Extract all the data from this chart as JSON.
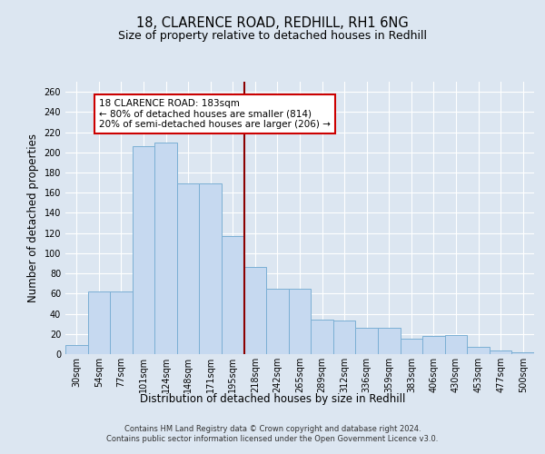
{
  "title": "18, CLARENCE ROAD, REDHILL, RH1 6NG",
  "subtitle": "Size of property relative to detached houses in Redhill",
  "xlabel": "Distribution of detached houses by size in Redhill",
  "ylabel": "Number of detached properties",
  "categories": [
    "30sqm",
    "54sqm",
    "77sqm",
    "101sqm",
    "124sqm",
    "148sqm",
    "171sqm",
    "195sqm",
    "218sqm",
    "242sqm",
    "265sqm",
    "289sqm",
    "312sqm",
    "336sqm",
    "359sqm",
    "383sqm",
    "406sqm",
    "430sqm",
    "453sqm",
    "477sqm",
    "500sqm"
  ],
  "values": [
    9,
    62,
    62,
    206,
    210,
    169,
    169,
    117,
    86,
    65,
    65,
    34,
    33,
    26,
    26,
    15,
    18,
    19,
    7,
    4,
    2
  ],
  "bar_color": "#c6d9f0",
  "bar_edge_color": "#7bafd4",
  "vline_position": 7.5,
  "vline_color": "#8b0000",
  "annotation_text": "18 CLARENCE ROAD: 183sqm\n← 80% of detached houses are smaller (814)\n20% of semi-detached houses are larger (206) →",
  "annotation_box_color": "#ffffff",
  "annotation_box_edge_color": "#cc0000",
  "footer_line1": "Contains HM Land Registry data © Crown copyright and database right 2024.",
  "footer_line2": "Contains public sector information licensed under the Open Government Licence v3.0.",
  "background_color": "#dce6f1",
  "plot_bg_color": "#dce6f1",
  "ylim": [
    0,
    270
  ],
  "grid_color": "#ffffff",
  "title_fontsize": 10.5,
  "subtitle_fontsize": 9,
  "ylabel_fontsize": 8.5,
  "xlabel_fontsize": 8.5,
  "tick_fontsize": 7,
  "annotation_fontsize": 7.5,
  "footer_fontsize": 6.0
}
